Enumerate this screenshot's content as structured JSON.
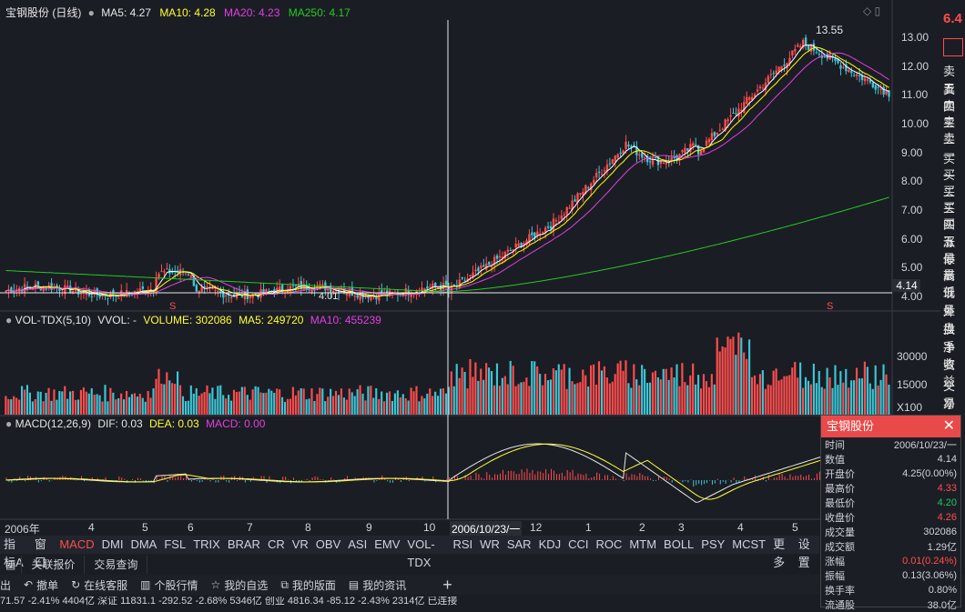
{
  "main_header": {
    "title": "宝钢股份 (日线)",
    "ma5": "MA5: 4.27",
    "ma10": "MA10: 4.28",
    "ma20": "MA20: 4.23",
    "ma250": "MA250: 4.17"
  },
  "vol_header": {
    "name": "VOL-TDX(5,10)",
    "vvol": "VVOL: -",
    "volume": "VOLUME: 302086",
    "ma5": "MA5: 249720",
    "ma10": "MA10: 455239"
  },
  "macd_header": {
    "name": "MACD(12,26,9)",
    "dif": "DIF: 0.03",
    "dea": "DEA: 0.03",
    "macd": "MACD: 0.00"
  },
  "annotations": {
    "high": "13.55",
    "low": "4.01",
    "current_price": "4.14",
    "s_mark": "S"
  },
  "price_axis": [
    "13.00",
    "12.00",
    "11.00",
    "10.00",
    "9.00",
    "8.00",
    "7.00",
    "6.00",
    "5.00",
    "4.00"
  ],
  "vol_axis": [
    "30000",
    "15000",
    "X100"
  ],
  "x_axis": {
    "labels": [
      "2006年",
      "4",
      "5",
      "6",
      "7",
      "8",
      "9",
      "10",
      "2006/10/23/一",
      "12",
      "1",
      "2",
      "3",
      "4",
      "5"
    ]
  },
  "tabs": [
    "指标A",
    "窗口",
    "MACD",
    "DMI",
    "DMA",
    "FSL",
    "TRIX",
    "BRAR",
    "CR",
    "VR",
    "OBV",
    "ASI",
    "EMV",
    "VOL-TDX",
    "RSI",
    "WR",
    "SAR",
    "KDJ",
    "CCI",
    "ROC",
    "MTM",
    "BOLL",
    "PSY",
    "MCST",
    "更多",
    "设置"
  ],
  "sub_buttons": [
    "关联报价",
    "交易查询"
  ],
  "bottom_toolbar": [
    "出",
    "撤单",
    "在线客服",
    "个股行情",
    "我的自选",
    "我的版面",
    "我的资讯"
  ],
  "status_text": "71.57  -2.41%  4404亿  深证 11831.1  -292.52  -2.68%  5346亿  创业 4816.34  -85.12  -2.43%  2314亿  已连接",
  "right_panel": {
    "top_price": "6.4",
    "labels": [
      "卖五",
      "卖四",
      "卖三",
      "卖二",
      "卖一",
      "买一",
      "买二",
      "买三",
      "买四",
      "买五",
      "涨停",
      "最高",
      "最低",
      "现量",
      "外盘",
      "换手",
      "净资",
      "收益",
      "交易",
      "净流"
    ]
  },
  "popup": {
    "title": "宝钢股份",
    "rows": [
      {
        "k": "时间",
        "v": "2006/10/23/一",
        "c": "#cfd3dc"
      },
      {
        "k": "数值",
        "v": "4.14",
        "c": "#cfd3dc"
      },
      {
        "k": "开盘价",
        "v": "4.25(0.00%)",
        "c": "#cfd3dc"
      },
      {
        "k": "最高价",
        "v": "4.33",
        "c": "#ff4d4d"
      },
      {
        "k": "最低价",
        "v": "4.20",
        "c": "#22c55e"
      },
      {
        "k": "收盘价",
        "v": "4.26",
        "c": "#ff4d4d"
      },
      {
        "k": "成交量",
        "v": "302086",
        "c": "#cfd3dc"
      },
      {
        "k": "成交额",
        "v": "1.29亿",
        "c": "#cfd3dc"
      },
      {
        "k": "涨幅",
        "v": "0.01(0.24%)",
        "c": "#ff4d4d"
      },
      {
        "k": "振幅",
        "v": "0.13(3.06%)",
        "c": "#cfd3dc"
      },
      {
        "k": "换手率",
        "v": "0.80%",
        "c": "#cfd3dc"
      },
      {
        "k": "流通股",
        "v": "38.0亿",
        "c": "#cfd3dc"
      }
    ]
  },
  "chart_data": {
    "type": "candlestick",
    "price_range": [
      4.0,
      13.6
    ],
    "ma_colors": {
      "ma5": "#ffffff",
      "ma10": "#ffff00",
      "ma20": "#e040e0",
      "ma250": "#22cc22"
    },
    "colors": {
      "up": "#ff4d4d",
      "down": "#3ec6d6",
      "cursor": "#ffffff"
    }
  }
}
